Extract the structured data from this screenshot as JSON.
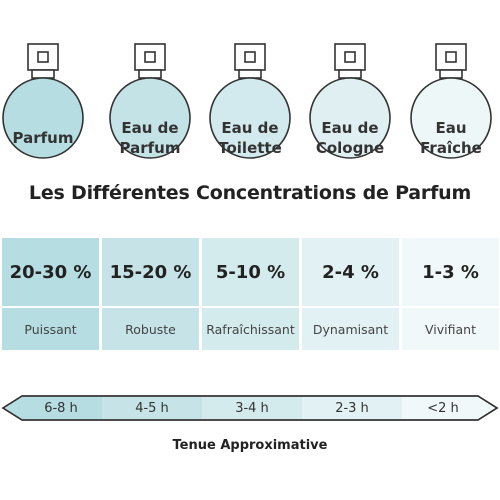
{
  "bottles": [
    {
      "label_line1": "Parfum",
      "label_line2": "",
      "fill": "#b5dde2"
    },
    {
      "label_line1": "Eau de",
      "label_line2": "Parfum",
      "fill": "#c4e3e7"
    },
    {
      "label_line1": "Eau de",
      "label_line2": "Toilette",
      "fill": "#d2eaed"
    },
    {
      "label_line1": "Eau de",
      "label_line2": "Cologne",
      "fill": "#e0f0f2"
    },
    {
      "label_line1": "Eau",
      "label_line2": "Fraîche",
      "fill": "#eef7f8"
    }
  ],
  "title": "Les Différentes Concentrations de Parfum",
  "concentrations": [
    {
      "percent": "20-30 %",
      "descriptor": "Puissant",
      "fill_top": "#b5dde2",
      "fill_bottom": "#b5dde2"
    },
    {
      "percent": "15-20 %",
      "descriptor": "Robuste",
      "fill_top": "#c6e4e8",
      "fill_bottom": "#c6e4e8"
    },
    {
      "percent": "5-10 %",
      "descriptor": "Rafraîchissant",
      "fill_top": "#d4ebee",
      "fill_bottom": "#d4ebee"
    },
    {
      "percent": "2-4 %",
      "descriptor": "Dynamisant",
      "fill_top": "#e2f1f3",
      "fill_bottom": "#e2f1f3"
    },
    {
      "percent": "1-3 %",
      "descriptor": "Vivifiant",
      "fill_top": "#f0f8f9",
      "fill_bottom": "#f0f8f9"
    }
  ],
  "duration": {
    "segments": [
      {
        "label": "6-8 h",
        "fill": "#b5dde2"
      },
      {
        "label": "4-5 h",
        "fill": "#c6e4e8"
      },
      {
        "label": "3-4 h",
        "fill": "#d4ebee"
      },
      {
        "label": "2-3 h",
        "fill": "#e2f1f3"
      },
      {
        "label": "<2 h",
        "fill": "#f0f8f9"
      }
    ],
    "caption": "Tenue Approximative"
  }
}
